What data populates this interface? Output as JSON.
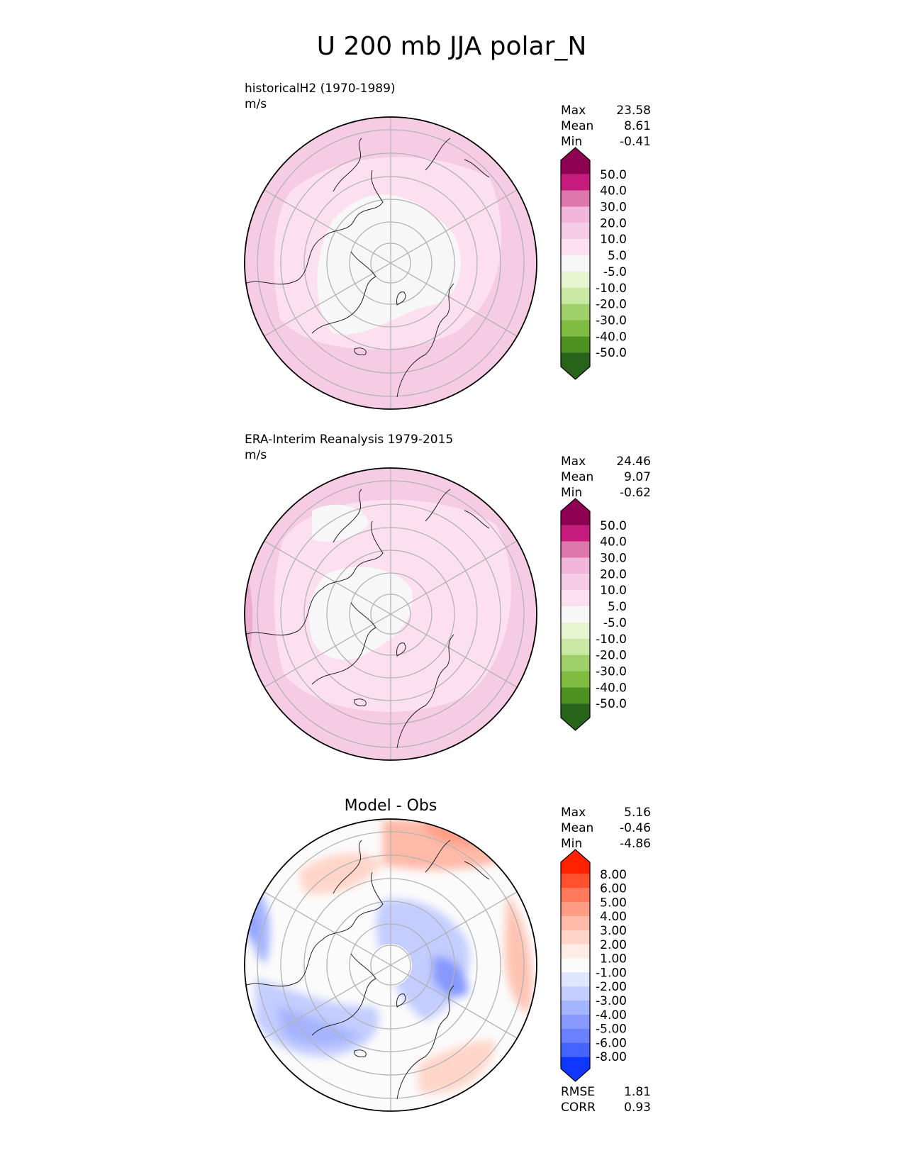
{
  "title": "U 200 mb JJA polar_N",
  "chart_data": [
    {
      "type": "heatmap",
      "projection": "north-polar-stereographic",
      "subtitle": "historicalH2 (1970-1989)",
      "units": "m/s",
      "stats": {
        "max_label": "Max",
        "max": "23.58",
        "mean_label": "Mean",
        "mean": "8.61",
        "min_label": "Min",
        "min": "-0.41"
      },
      "colorbar": {
        "levels": [
          "50.0",
          "40.0",
          "30.0",
          "20.0",
          "10.0",
          "5.0",
          "-5.0",
          "-10.0",
          "-20.0",
          "-30.0",
          "-40.0",
          "-50.0"
        ],
        "colors": [
          "#8e0152",
          "#c51b7d",
          "#de77ae",
          "#f1b6da",
          "#f6cbe4",
          "#fde0ef",
          "#f7f7f7",
          "#e6f5d0",
          "#c9e8a4",
          "#9fd06a",
          "#7fbc41",
          "#4d9221",
          "#276419"
        ]
      }
    },
    {
      "type": "heatmap",
      "projection": "north-polar-stereographic",
      "subtitle": "ERA-Interim Reanalysis 1979-2015",
      "units": "m/s",
      "stats": {
        "max_label": "Max",
        "max": "24.46",
        "mean_label": "Mean",
        "mean": "9.07",
        "min_label": "Min",
        "min": "-0.62"
      },
      "colorbar": {
        "levels": [
          "50.0",
          "40.0",
          "30.0",
          "20.0",
          "10.0",
          "5.0",
          "-5.0",
          "-10.0",
          "-20.0",
          "-30.0",
          "-40.0",
          "-50.0"
        ],
        "colors": [
          "#8e0152",
          "#c51b7d",
          "#de77ae",
          "#f1b6da",
          "#f6cbe4",
          "#fde0ef",
          "#f7f7f7",
          "#e6f5d0",
          "#c9e8a4",
          "#9fd06a",
          "#7fbc41",
          "#4d9221",
          "#276419"
        ]
      }
    },
    {
      "type": "heatmap",
      "projection": "north-polar-stereographic",
      "subtitle": "Model - Obs",
      "stats": {
        "max_label": "Max",
        "max": "5.16",
        "mean_label": "Mean",
        "mean": "-0.46",
        "min_label": "Min",
        "min": "-4.86",
        "rmse_label": "RMSE",
        "rmse": "1.81",
        "corr_label": "CORR",
        "corr": "0.93"
      },
      "colorbar": {
        "levels": [
          "8.00",
          "6.00",
          "5.00",
          "4.00",
          "3.00",
          "2.00",
          "1.00",
          "-1.00",
          "-2.00",
          "-3.00",
          "-4.00",
          "-5.00",
          "-6.00",
          "-8.00"
        ],
        "colors": [
          "#ff2200",
          "#ff5030",
          "#ff7a5c",
          "#ff9c84",
          "#ffbaa8",
          "#ffd5c9",
          "#ffecE6",
          "#fbfbfb",
          "#dfe4ff",
          "#c3cdff",
          "#a5b4ff",
          "#8799ff",
          "#6a80ff",
          "#4563ff",
          "#0f37ff"
        ]
      }
    }
  ]
}
